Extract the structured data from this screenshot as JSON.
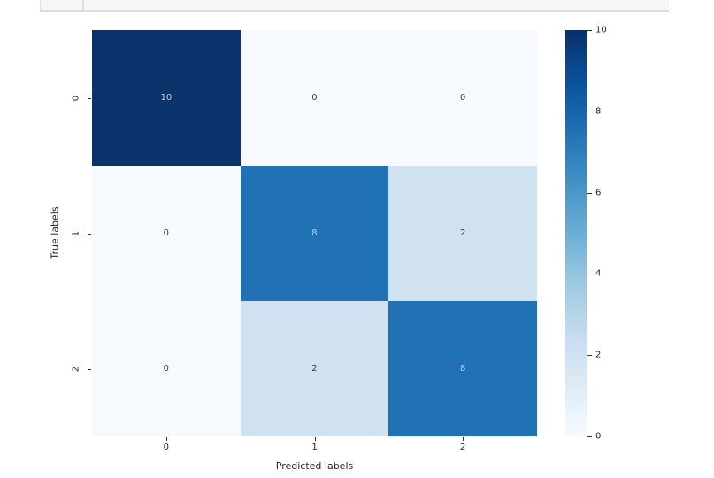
{
  "chart_data": {
    "type": "heatmap",
    "title": "",
    "xlabel": "Predicted labels",
    "ylabel": "True labels",
    "x_categories": [
      "0",
      "1",
      "2"
    ],
    "y_categories": [
      "0",
      "1",
      "2"
    ],
    "matrix": [
      [
        10,
        0,
        0
      ],
      [
        0,
        8,
        2
      ],
      [
        0,
        2,
        8
      ]
    ],
    "cell_colors": [
      [
        "#0c326c",
        "#f6fafe",
        "#f6fafe"
      ],
      [
        "#f6fafe",
        "#2171b5",
        "#d0e1ef"
      ],
      [
        "#f6fafe",
        "#d0e1ef",
        "#2171b5"
      ]
    ],
    "annotation_text_color_light": "#c4cfe2",
    "annotation_text_color_dark": "#3d3d3d",
    "colorbar": {
      "min": 0,
      "max": 10,
      "tick_values": [
        0,
        2,
        4,
        6,
        8,
        10
      ],
      "colormap": "Blues",
      "gradient_stops": [
        "#f7fbff",
        "#deebf7",
        "#c6dbef",
        "#9ecae1",
        "#6baed6",
        "#4292c6",
        "#2171b5",
        "#08519c",
        "#08306b"
      ]
    }
  }
}
